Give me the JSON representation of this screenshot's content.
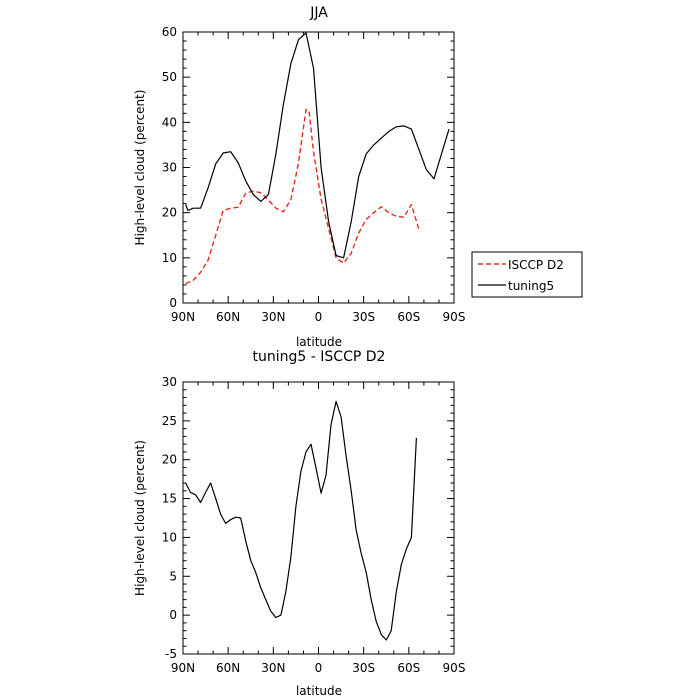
{
  "chart_data": [
    {
      "type": "line",
      "title": "JJA",
      "xlabel": "latitude",
      "ylabel": "High-level cloud (percent)",
      "xlim": [
        90,
        -90
      ],
      "ylim": [
        0,
        60
      ],
      "x_ticks": [
        90,
        60,
        30,
        0,
        -30,
        -60,
        -90
      ],
      "x_tick_labels": [
        "90N",
        "60N",
        "30N",
        "0",
        "30S",
        "60S",
        "90S"
      ],
      "y_ticks": [
        0,
        10,
        20,
        30,
        40,
        50,
        60
      ],
      "y_tick_labels": [
        "0",
        "10",
        "20",
        "30",
        "40",
        "50",
        "60"
      ],
      "legend_position": "right",
      "series": [
        {
          "name": "ISCCP D2",
          "color": "#e8281e",
          "dash": "dashed",
          "x": [
            88.3,
            83.3,
            78.3,
            73.3,
            68.3,
            63.3,
            58.3,
            53.3,
            48.3,
            43.3,
            38.3,
            33.3,
            28.3,
            23.3,
            18.3,
            13.3,
            8.3,
            6.3,
            3.3,
            -1.7,
            -6.7,
            -11.7,
            -16.7,
            -21.7,
            -26.7,
            -31.7,
            -36.7,
            -41.7,
            -46.7,
            -51.7,
            -56.7,
            -61.7,
            -66.7
          ],
          "y": [
            4.3,
            5.0,
            6.8,
            9.5,
            15.0,
            20.5,
            21.0,
            21.2,
            24.3,
            24.8,
            24.4,
            22.8,
            21.0,
            20.2,
            22.9,
            31.0,
            42.8,
            42.6,
            33.5,
            23.0,
            16.5,
            10.0,
            8.8,
            11.0,
            15.5,
            18.5,
            20.0,
            21.3,
            20.0,
            19.2,
            19.0,
            21.8,
            16.3
          ]
        },
        {
          "name": "tuning5",
          "color": "#000000",
          "dash": "solid",
          "x": [
            88.3,
            86.7,
            83.3,
            78.3,
            73.3,
            68.3,
            63.3,
            58.3,
            53.3,
            48.3,
            43.3,
            38.3,
            33.3,
            28.3,
            23.3,
            18.3,
            13.3,
            8.3,
            3.3,
            -1.7,
            -6.7,
            -11.7,
            -16.7,
            -21.7,
            -26.7,
            -31.7,
            -36.7,
            -41.7,
            -46.7,
            -51.7,
            -56.7,
            -61.7,
            -66.7,
            -71.7,
            -76.7,
            -81.7,
            -86.7
          ],
          "y": [
            21.8,
            20.5,
            21.0,
            21.0,
            25.5,
            30.8,
            33.2,
            33.5,
            31.0,
            27.0,
            24.0,
            22.5,
            24.0,
            33.0,
            44.0,
            53.0,
            58.3,
            59.8,
            52.0,
            30.0,
            18.0,
            10.5,
            10.0,
            18.0,
            28.0,
            33.0,
            35.0,
            36.5,
            38.0,
            39.0,
            39.2,
            38.5,
            34.0,
            29.5,
            27.5,
            33.0,
            38.5
          ]
        }
      ]
    },
    {
      "type": "line",
      "title": "tuning5 - ISCCP D2",
      "xlabel": "latitude",
      "ylabel": "High-level cloud (percent)",
      "xlim": [
        90,
        -90
      ],
      "ylim": [
        -5,
        30
      ],
      "x_ticks": [
        90,
        60,
        30,
        0,
        -30,
        -60,
        -90
      ],
      "x_tick_labels": [
        "90N",
        "60N",
        "30N",
        "0",
        "30S",
        "60S",
        "90S"
      ],
      "y_ticks": [
        -5,
        0,
        5,
        10,
        15,
        20,
        25,
        30
      ],
      "y_tick_labels": [
        "-5",
        "0",
        "5",
        "10",
        "15",
        "20",
        "25",
        "30"
      ],
      "series": [
        {
          "color": "#000000",
          "dash": "solid",
          "x": [
            88.3,
            85.0,
            81.7,
            78.3,
            75.0,
            71.7,
            68.3,
            65.0,
            61.7,
            58.3,
            55.0,
            51.7,
            48.3,
            45.0,
            41.7,
            38.3,
            35.0,
            31.7,
            28.3,
            25.0,
            21.7,
            18.3,
            15.0,
            11.7,
            8.3,
            5.0,
            1.7,
            -1.7,
            -5.0,
            -8.3,
            -11.7,
            -15.0,
            -18.3,
            -21.7,
            -25.0,
            -28.3,
            -31.7,
            -35.0,
            -38.3,
            -41.7,
            -45.0,
            -48.3,
            -51.7,
            -55.0,
            -58.3,
            -61.7,
            -65.0
          ],
          "y": [
            17.0,
            15.8,
            15.5,
            14.5,
            15.8,
            17.0,
            15.0,
            13.0,
            11.8,
            12.3,
            12.6,
            12.5,
            9.5,
            7.0,
            5.5,
            3.5,
            2.0,
            0.5,
            -0.3,
            0.0,
            3.0,
            7.5,
            14.0,
            18.5,
            21.0,
            22.0,
            19.0,
            15.7,
            18.0,
            24.5,
            27.5,
            25.5,
            20.5,
            16.0,
            11.0,
            8.0,
            5.5,
            2.0,
            -0.8,
            -2.5,
            -3.2,
            -2.0,
            3.0,
            6.5,
            8.5,
            10.0,
            22.8
          ]
        }
      ]
    }
  ]
}
